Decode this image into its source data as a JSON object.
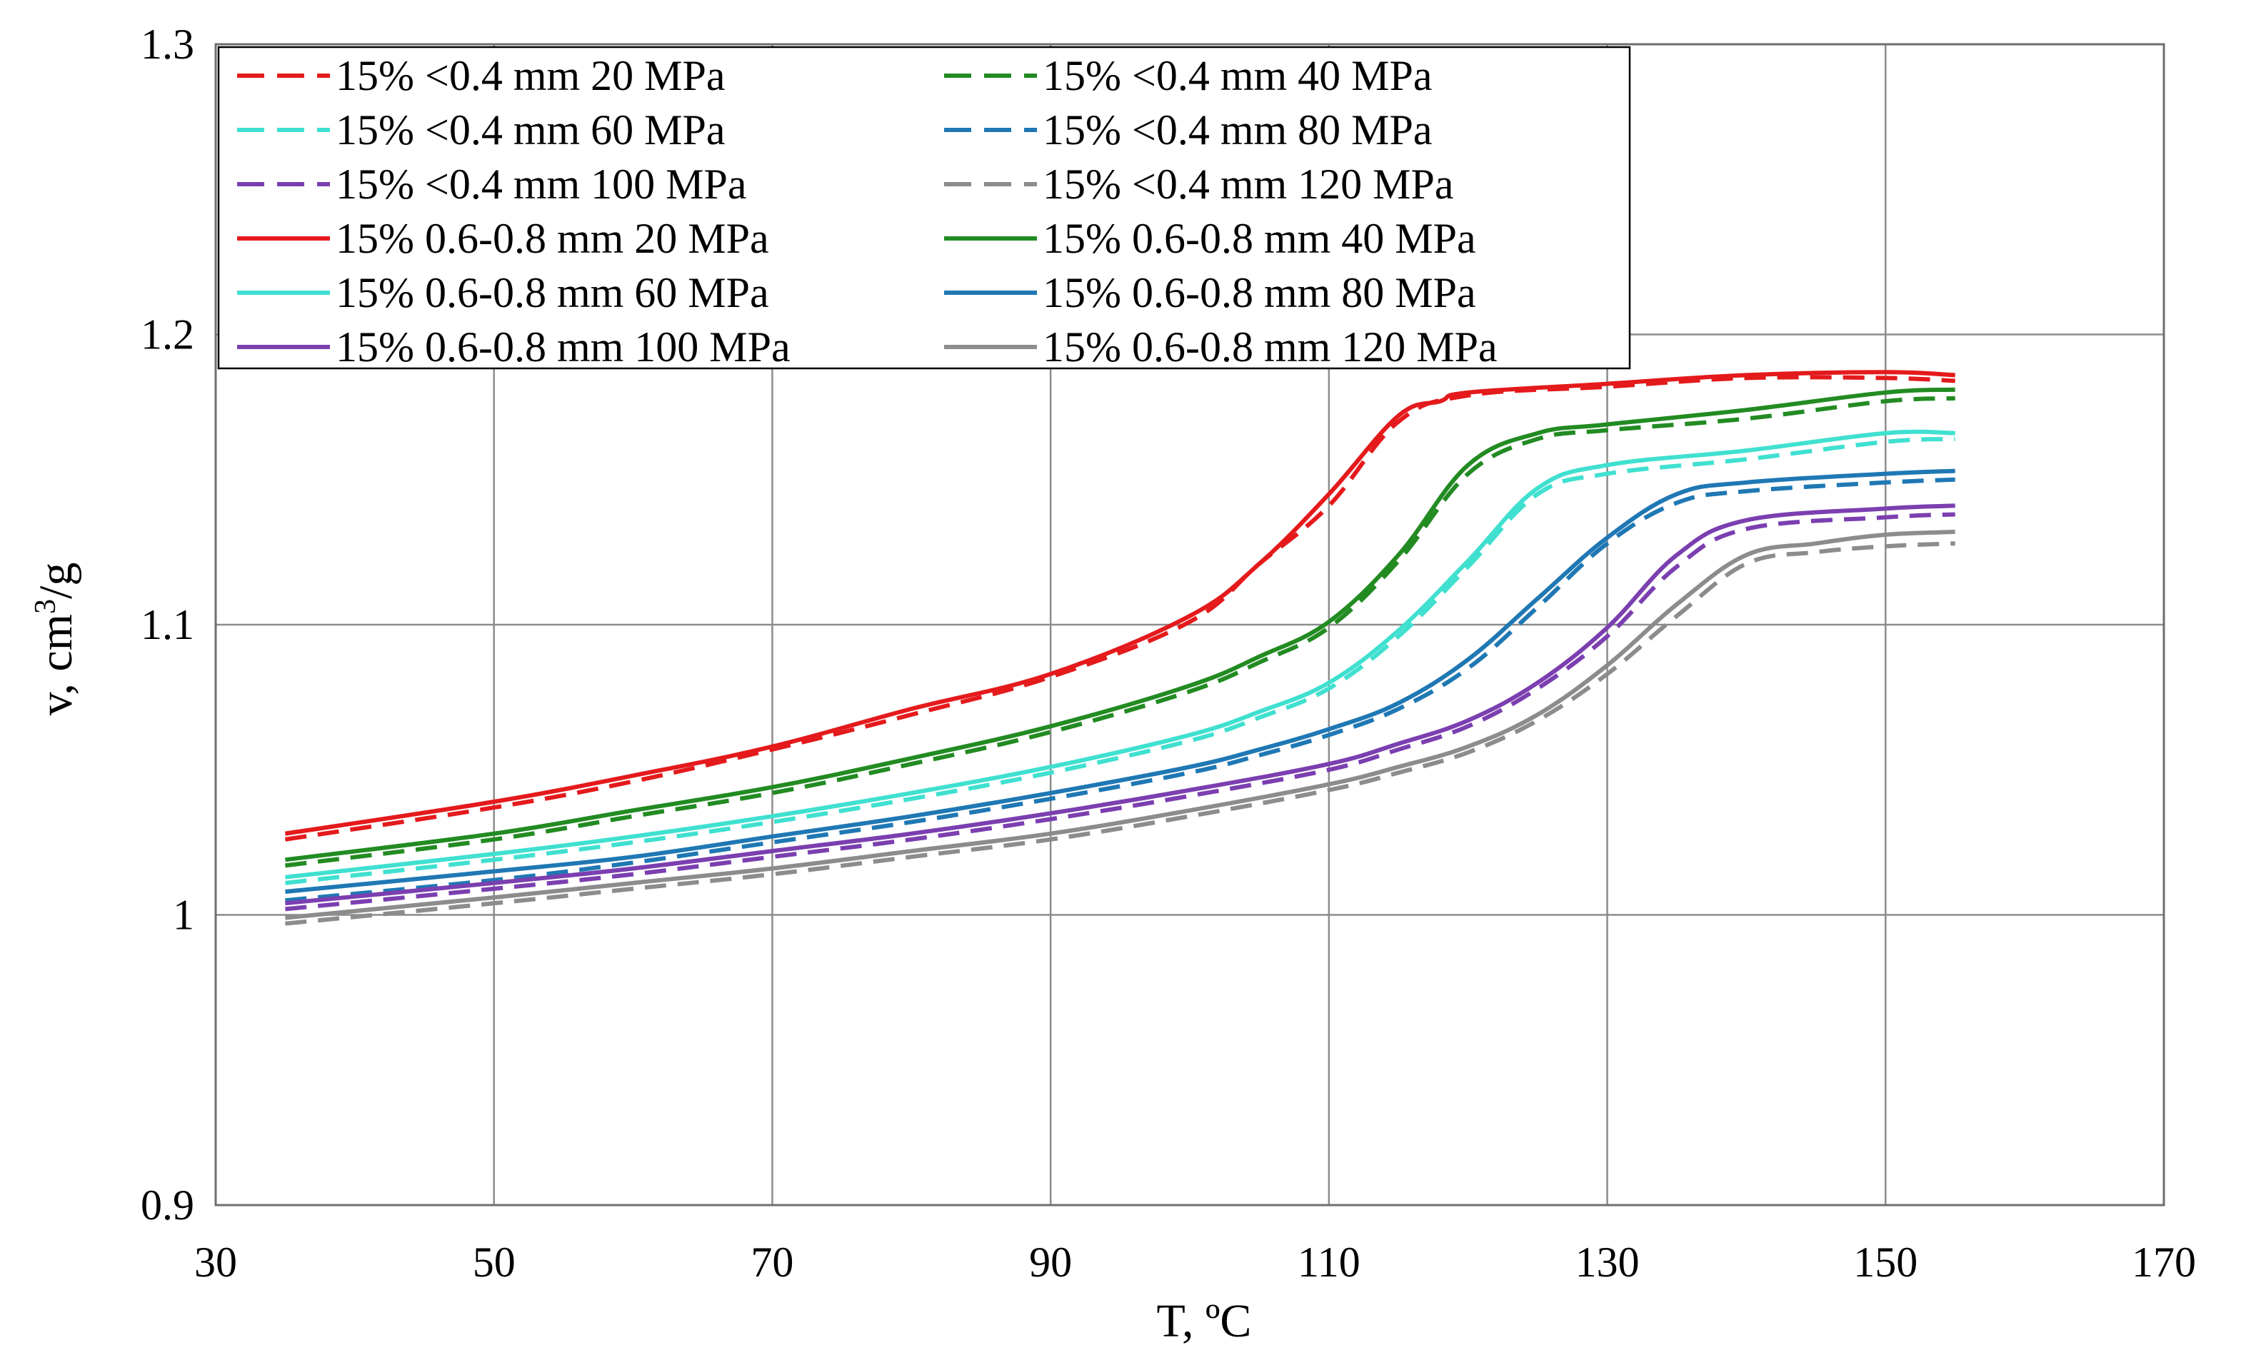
{
  "chart_data": {
    "type": "line",
    "title": "",
    "xlabel": "T, ºC",
    "ylabel": "v, cm3/g",
    "ylabel_parts": {
      "base": "v, cm",
      "sup": "3",
      "tail": "/g"
    },
    "xlim": [
      30,
      170
    ],
    "ylim": [
      0.9,
      1.3
    ],
    "xticks": [
      30,
      50,
      70,
      90,
      110,
      130,
      150,
      170
    ],
    "yticks": [
      0.9,
      1.0,
      1.1,
      1.2,
      1.3
    ],
    "xtick_labels": [
      "30",
      "50",
      "70",
      "90",
      "110",
      "130",
      "150",
      "170"
    ],
    "ytick_labels": [
      "0.9",
      "1",
      "1.1",
      "1.2",
      "1.3"
    ],
    "grid": true,
    "legend_position": "top-left",
    "series": [
      {
        "name": "15%  <0.4 mm 20 MPa",
        "color": "#e41a1c",
        "style": "dashed",
        "x": [
          35,
          50,
          60,
          70,
          80,
          90,
          100,
          105,
          110,
          115,
          120,
          130,
          140,
          150,
          155
        ],
        "y": [
          1.026,
          1.037,
          1.046,
          1.057,
          1.069,
          1.082,
          1.101,
          1.121,
          1.141,
          1.17,
          1.179,
          1.182,
          1.185,
          1.185,
          1.184
        ]
      },
      {
        "name": "15%  <0.4 mm 40 MPa",
        "color": "#228b22",
        "style": "dashed",
        "x": [
          35,
          50,
          60,
          70,
          80,
          90,
          100,
          105,
          110,
          115,
          120,
          125,
          130,
          140,
          150,
          155
        ],
        "y": [
          1.017,
          1.026,
          1.034,
          1.042,
          1.052,
          1.063,
          1.077,
          1.087,
          1.099,
          1.122,
          1.152,
          1.164,
          1.167,
          1.171,
          1.177,
          1.178
        ]
      },
      {
        "name": "15%  <0.4 mm 60 MPa",
        "color": "#40e0d0",
        "style": "dashed",
        "x": [
          35,
          50,
          60,
          70,
          80,
          90,
          100,
          105,
          110,
          115,
          120,
          125,
          130,
          140,
          150,
          155
        ],
        "y": [
          1.011,
          1.019,
          1.025,
          1.032,
          1.04,
          1.049,
          1.06,
          1.068,
          1.078,
          1.096,
          1.12,
          1.145,
          1.152,
          1.157,
          1.163,
          1.164
        ]
      },
      {
        "name": "15%  <0.4 mm 80 MPa",
        "color": "#1f78b4",
        "style": "dashed",
        "x": [
          35,
          50,
          60,
          70,
          80,
          90,
          100,
          105,
          110,
          115,
          120,
          125,
          130,
          135,
          140,
          150,
          155
        ],
        "y": [
          1.005,
          1.012,
          1.018,
          1.025,
          1.032,
          1.04,
          1.049,
          1.055,
          1.062,
          1.071,
          1.085,
          1.106,
          1.128,
          1.142,
          1.146,
          1.149,
          1.15
        ]
      },
      {
        "name": "15%  <0.4 mm 100 MPa",
        "color": "#7b3fb0",
        "style": "dashed",
        "x": [
          35,
          50,
          60,
          70,
          80,
          90,
          100,
          110,
          115,
          120,
          125,
          130,
          135,
          140,
          150,
          155
        ],
        "y": [
          1.002,
          1.009,
          1.014,
          1.02,
          1.026,
          1.033,
          1.041,
          1.05,
          1.057,
          1.065,
          1.078,
          1.096,
          1.12,
          1.133,
          1.137,
          1.138
        ]
      },
      {
        "name": "15%  <0.4 mm 120 MPa",
        "color": "#8c8c8c",
        "style": "dashed",
        "x": [
          35,
          50,
          60,
          70,
          80,
          90,
          100,
          110,
          115,
          120,
          125,
          130,
          135,
          140,
          145,
          150,
          155
        ],
        "y": [
          0.997,
          1.004,
          1.009,
          1.014,
          1.02,
          1.026,
          1.034,
          1.043,
          1.049,
          1.056,
          1.067,
          1.083,
          1.103,
          1.121,
          1.125,
          1.127,
          1.128
        ]
      },
      {
        "name": "15% 0.6-0.8 mm 20 MPa",
        "color": "#e41a1c",
        "style": "solid",
        "x": [
          35,
          50,
          60,
          70,
          80,
          90,
          100,
          105,
          110,
          115,
          118,
          120,
          130,
          140,
          150,
          155
        ],
        "y": [
          1.028,
          1.039,
          1.048,
          1.058,
          1.071,
          1.083,
          1.103,
          1.121,
          1.145,
          1.172,
          1.177,
          1.18,
          1.183,
          1.186,
          1.187,
          1.186
        ]
      },
      {
        "name": "15% 0.6-0.8 mm 40 MPa",
        "color": "#228b22",
        "style": "solid",
        "x": [
          35,
          50,
          60,
          70,
          80,
          90,
          100,
          105,
          110,
          115,
          120,
          125,
          130,
          140,
          150,
          155
        ],
        "y": [
          1.019,
          1.028,
          1.036,
          1.044,
          1.054,
          1.065,
          1.079,
          1.089,
          1.101,
          1.124,
          1.155,
          1.166,
          1.169,
          1.174,
          1.18,
          1.181
        ]
      },
      {
        "name": "15% 0.6-0.8 mm 60 MPa",
        "color": "#40e0d0",
        "style": "solid",
        "x": [
          35,
          50,
          60,
          70,
          80,
          90,
          100,
          105,
          110,
          115,
          120,
          125,
          130,
          140,
          150,
          155
        ],
        "y": [
          1.013,
          1.021,
          1.027,
          1.034,
          1.042,
          1.051,
          1.062,
          1.07,
          1.08,
          1.098,
          1.122,
          1.147,
          1.155,
          1.16,
          1.166,
          1.166
        ]
      },
      {
        "name": "15% 0.6-0.8 mm 80 MPa",
        "color": "#1f78b4",
        "style": "solid",
        "x": [
          35,
          50,
          60,
          70,
          80,
          90,
          100,
          105,
          110,
          115,
          120,
          125,
          130,
          135,
          140,
          150,
          155
        ],
        "y": [
          1.008,
          1.015,
          1.02,
          1.027,
          1.034,
          1.042,
          1.051,
          1.057,
          1.064,
          1.073,
          1.088,
          1.109,
          1.13,
          1.145,
          1.149,
          1.152,
          1.153
        ]
      },
      {
        "name": "15% 0.6-0.8 mm 100 MPa",
        "color": "#7b3fb0",
        "style": "solid",
        "x": [
          35,
          50,
          60,
          70,
          80,
          90,
          100,
          110,
          115,
          120,
          125,
          130,
          135,
          140,
          150,
          155
        ],
        "y": [
          1.004,
          1.011,
          1.016,
          1.022,
          1.028,
          1.035,
          1.043,
          1.052,
          1.059,
          1.067,
          1.08,
          1.099,
          1.124,
          1.136,
          1.14,
          1.141
        ]
      },
      {
        "name": "15% 0.6-0.8 mm 120 MPa",
        "color": "#8c8c8c",
        "style": "solid",
        "x": [
          35,
          50,
          60,
          70,
          80,
          90,
          100,
          110,
          115,
          120,
          125,
          130,
          135,
          140,
          145,
          150,
          155
        ],
        "y": [
          0.999,
          1.006,
          1.011,
          1.016,
          1.022,
          1.028,
          1.036,
          1.045,
          1.051,
          1.058,
          1.069,
          1.086,
          1.107,
          1.124,
          1.128,
          1.131,
          1.132
        ]
      }
    ]
  }
}
